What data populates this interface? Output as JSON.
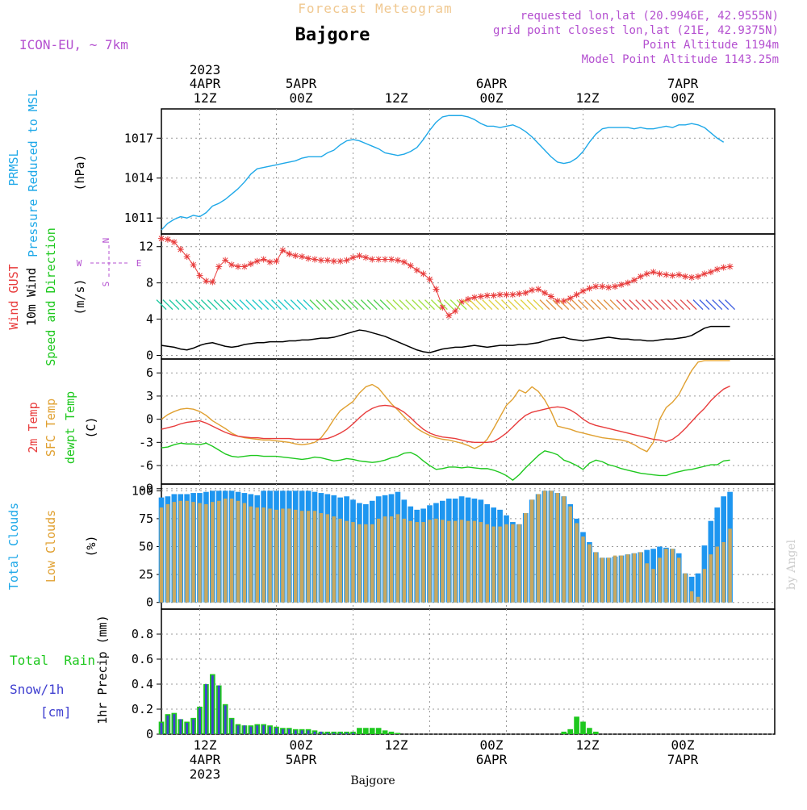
{
  "header": {
    "chart_title": "Forecast Meteogram",
    "location": "Bajgore",
    "model": "ICON-EU, ~ 7km",
    "info": [
      "requested lon,lat (20.9946E, 42.9555N)",
      "grid point closest lon,lat (21E, 42.9375N)",
      "Point Altitude 1194m",
      "Model Point Altitude 1143.25m"
    ],
    "watermark": "by Angel",
    "footer_location": "Bajgore"
  },
  "colors": {
    "pressure": "#1ea8e8",
    "gust": "#e83c3c",
    "wind": "#000000",
    "temp2m": "#e83c3c",
    "sfc": "#e0a030",
    "dewpt": "#1ec81e",
    "total_clouds": "#1e96f0",
    "low_clouds": "#c8a860",
    "rain": "#1ec81e",
    "snow": "#4040d0",
    "title": "#f0c890",
    "info": "#b450d0"
  },
  "time_axis": {
    "top_year": "2023",
    "top_dates": [
      "4APR",
      "5APR",
      "6APR",
      "7APR"
    ],
    "top_hours": [
      "12Z",
      "00Z",
      "12Z",
      "00Z",
      "12Z",
      "00Z"
    ],
    "bottom_hours": [
      "12Z",
      "00Z",
      "12Z",
      "00Z",
      "12Z",
      "00Z"
    ],
    "bottom_dates": [
      "4APR",
      "5APR",
      "6APR",
      "7APR"
    ],
    "bottom_year": "2023"
  },
  "panel_labels": {
    "pressure": {
      "line1": "PRMSL",
      "line2": "Pressure Reduced to MSL",
      "unit": "(hPa)"
    },
    "wind": {
      "gust": "Wind GUST",
      "wind10": "10m Wind",
      "dir": "Speed and Direction",
      "unit": "(m/s)"
    },
    "compass": {
      "n": "N",
      "s": "S",
      "w": "W",
      "e": "E"
    },
    "temp": {
      "t2m": "2m Temp",
      "sfc": "SFC Temp",
      "dew": "dewpt Temp",
      "unit": "(C)"
    },
    "clouds": {
      "total": "Total Clouds",
      "low": "Low Clouds",
      "unit": "(%)"
    },
    "precip": {
      "rain": "Total  Rain",
      "snow": "Snow/1h",
      "cm": "[cm]",
      "axis": "1hr Precip (mm)"
    }
  },
  "chart_data": [
    {
      "type": "line",
      "panel": "pressure",
      "ylabel": "(hPa)",
      "yticks": [
        1011,
        1014,
        1017
      ],
      "ylim": [
        1009.8,
        1019.2
      ],
      "x_hours_from": 6,
      "x_step": 1,
      "series": [
        {
          "name": "PRMSL",
          "values": [
            1010.1,
            1010.6,
            1010.9,
            1011.1,
            1011.0,
            1011.2,
            1011.1,
            1011.4,
            1011.9,
            1012.1,
            1012.4,
            1012.8,
            1013.2,
            1013.7,
            1014.3,
            1014.7,
            1014.8,
            1014.9,
            1015.0,
            1015.1,
            1015.2,
            1015.3,
            1015.5,
            1015.6,
            1015.6,
            1015.6,
            1015.9,
            1016.1,
            1016.5,
            1016.8,
            1016.9,
            1016.8,
            1016.6,
            1016.4,
            1016.2,
            1015.9,
            1015.8,
            1015.7,
            1015.8,
            1016.0,
            1016.3,
            1016.9,
            1017.6,
            1018.2,
            1018.6,
            1018.7,
            1018.7,
            1018.7,
            1018.6,
            1018.4,
            1018.1,
            1017.9,
            1017.9,
            1017.8,
            1017.9,
            1018.0,
            1017.8,
            1017.5,
            1017.1,
            1016.6,
            1016.1,
            1015.6,
            1015.2,
            1015.1,
            1015.2,
            1015.5,
            1016.0,
            1016.7,
            1017.3,
            1017.7,
            1017.8,
            1017.8,
            1017.8,
            1017.8,
            1017.7,
            1017.8,
            1017.7,
            1017.7,
            1017.8,
            1017.9,
            1017.8,
            1018.0,
            1018.0,
            1018.1,
            1018.0,
            1017.8,
            1017.4,
            1017.0,
            1016.7
          ]
        }
      ]
    },
    {
      "type": "line",
      "panel": "wind",
      "ylabel": "(m/s)",
      "yticks": [
        0,
        4,
        8,
        12
      ],
      "ylim": [
        -0.4,
        13.4
      ],
      "x_hours_from": 6,
      "x_step": 1,
      "series": [
        {
          "name": "Wind GUST",
          "values": [
            12.9,
            12.8,
            12.5,
            11.7,
            10.9,
            10.0,
            8.8,
            8.2,
            8.1,
            9.8,
            10.5,
            10.0,
            9.8,
            9.8,
            10.1,
            10.4,
            10.6,
            10.3,
            10.4,
            11.6,
            11.2,
            11.0,
            10.9,
            10.7,
            10.6,
            10.5,
            10.5,
            10.4,
            10.4,
            10.5,
            10.8,
            11.0,
            10.8,
            10.6,
            10.6,
            10.6,
            10.6,
            10.5,
            10.3,
            9.9,
            9.4,
            9.0,
            8.4,
            7.3,
            5.3,
            4.4,
            4.9,
            5.9,
            6.2,
            6.4,
            6.5,
            6.6,
            6.6,
            6.7,
            6.7,
            6.7,
            6.8,
            6.9,
            7.2,
            7.3,
            6.9,
            6.5,
            6.0,
            6.0,
            6.3,
            6.7,
            7.1,
            7.4,
            7.6,
            7.6,
            7.5,
            7.6,
            7.8,
            8.0,
            8.3,
            8.7,
            9.0,
            9.2,
            9.0,
            8.9,
            8.8,
            8.9,
            8.7,
            8.6,
            8.7,
            9.0,
            9.2,
            9.5,
            9.7,
            9.8
          ]
        },
        {
          "name": "10m Wind",
          "values": [
            1.1,
            1.0,
            0.9,
            0.7,
            0.6,
            0.8,
            1.1,
            1.3,
            1.4,
            1.2,
            1.0,
            0.9,
            1.0,
            1.2,
            1.3,
            1.4,
            1.4,
            1.5,
            1.5,
            1.5,
            1.6,
            1.6,
            1.7,
            1.7,
            1.8,
            1.9,
            1.9,
            2.0,
            2.2,
            2.4,
            2.6,
            2.8,
            2.7,
            2.5,
            2.3,
            2.1,
            1.8,
            1.5,
            1.2,
            0.9,
            0.6,
            0.4,
            0.3,
            0.5,
            0.7,
            0.8,
            0.9,
            0.9,
            1.0,
            1.1,
            1.0,
            0.9,
            1.0,
            1.1,
            1.1,
            1.1,
            1.2,
            1.2,
            1.3,
            1.4,
            1.6,
            1.8,
            1.9,
            2.0,
            1.8,
            1.7,
            1.6,
            1.7,
            1.8,
            1.9,
            2.0,
            1.9,
            1.8,
            1.8,
            1.7,
            1.7,
            1.6,
            1.6,
            1.7,
            1.8,
            1.8,
            1.9,
            2.0,
            2.2,
            2.6,
            3.0,
            3.2,
            3.2,
            3.2,
            3.2
          ]
        }
      ]
    },
    {
      "type": "line",
      "panel": "temperature",
      "ylabel": "(C)",
      "yticks": [
        -9,
        -6,
        -3,
        0,
        3,
        6
      ],
      "ylim": [
        -8.4,
        7.8
      ],
      "x_hours_from": 6,
      "x_step": 1,
      "series": [
        {
          "name": "2m Temp",
          "values": [
            -1.3,
            -1.1,
            -0.9,
            -0.6,
            -0.4,
            -0.3,
            -0.2,
            -0.5,
            -0.9,
            -1.3,
            -1.7,
            -2.0,
            -2.2,
            -2.3,
            -2.4,
            -2.4,
            -2.5,
            -2.5,
            -2.5,
            -2.5,
            -2.5,
            -2.6,
            -2.6,
            -2.6,
            -2.6,
            -2.6,
            -2.5,
            -2.2,
            -1.8,
            -1.3,
            -0.6,
            0.2,
            0.9,
            1.4,
            1.7,
            1.8,
            1.7,
            1.4,
            0.9,
            0.2,
            -0.6,
            -1.3,
            -1.8,
            -2.1,
            -2.3,
            -2.4,
            -2.5,
            -2.7,
            -2.9,
            -3.0,
            -3.0,
            -3.0,
            -2.9,
            -2.4,
            -1.8,
            -1.0,
            -0.2,
            0.5,
            0.9,
            1.1,
            1.3,
            1.5,
            1.6,
            1.5,
            1.2,
            0.7,
            0.0,
            -0.5,
            -0.8,
            -1.0,
            -1.2,
            -1.4,
            -1.6,
            -1.8,
            -2.0,
            -2.2,
            -2.4,
            -2.6,
            -2.7,
            -2.9,
            -2.6,
            -2.0,
            -1.2,
            -0.3,
            0.6,
            1.4,
            2.4,
            3.2,
            3.9,
            4.3
          ]
        },
        {
          "name": "SFC Temp",
          "values": [
            0.0,
            0.6,
            1.0,
            1.3,
            1.4,
            1.3,
            1.0,
            0.5,
            -0.2,
            -0.7,
            -1.2,
            -1.8,
            -2.2,
            -2.4,
            -2.5,
            -2.6,
            -2.7,
            -2.7,
            -2.8,
            -2.9,
            -3.0,
            -3.2,
            -3.3,
            -3.2,
            -3.0,
            -2.4,
            -1.3,
            0.0,
            1.1,
            1.7,
            2.3,
            3.4,
            4.2,
            4.5,
            4.0,
            3.0,
            2.0,
            1.2,
            0.3,
            -0.5,
            -1.2,
            -1.7,
            -2.1,
            -2.4,
            -2.6,
            -2.7,
            -2.9,
            -3.1,
            -3.4,
            -3.8,
            -3.4,
            -2.6,
            -1.2,
            0.3,
            1.8,
            2.6,
            3.8,
            3.4,
            4.2,
            3.6,
            2.5,
            1.0,
            -0.9,
            -1.1,
            -1.3,
            -1.6,
            -1.8,
            -2.0,
            -2.2,
            -2.4,
            -2.5,
            -2.6,
            -2.7,
            -2.9,
            -3.3,
            -3.8,
            -4.2,
            -3.0,
            0.0,
            1.5,
            2.2,
            3.2,
            4.8,
            6.3,
            7.4,
            7.6,
            7.6,
            7.6,
            7.6,
            7.6
          ]
        },
        {
          "name": "dewpt Temp",
          "values": [
            -3.7,
            -3.6,
            -3.3,
            -3.1,
            -3.2,
            -3.2,
            -3.3,
            -3.1,
            -3.5,
            -4.0,
            -4.5,
            -4.8,
            -4.9,
            -4.8,
            -4.7,
            -4.7,
            -4.8,
            -4.8,
            -4.8,
            -4.9,
            -5.0,
            -5.1,
            -5.2,
            -5.1,
            -4.9,
            -5.0,
            -5.2,
            -5.4,
            -5.3,
            -5.1,
            -5.2,
            -5.4,
            -5.5,
            -5.6,
            -5.5,
            -5.3,
            -5.0,
            -4.8,
            -4.4,
            -4.3,
            -4.7,
            -5.4,
            -6.0,
            -6.5,
            -6.4,
            -6.2,
            -6.2,
            -6.3,
            -6.2,
            -6.3,
            -6.4,
            -6.4,
            -6.6,
            -6.9,
            -7.3,
            -7.9,
            -7.2,
            -6.3,
            -5.5,
            -4.7,
            -4.1,
            -4.3,
            -4.6,
            -5.3,
            -5.6,
            -6.0,
            -6.5,
            -5.7,
            -5.3,
            -5.5,
            -5.9,
            -6.1,
            -6.4,
            -6.6,
            -6.8,
            -7.0,
            -7.1,
            -7.2,
            -7.3,
            -7.3,
            -7.0,
            -6.8,
            -6.6,
            -6.5,
            -6.3,
            -6.1,
            -5.9,
            -5.9,
            -5.4,
            -5.3
          ]
        }
      ]
    },
    {
      "type": "bar",
      "panel": "clouds",
      "ylabel": "(%)",
      "yticks": [
        0,
        25,
        50,
        75,
        100
      ],
      "ylim": [
        -6,
        106
      ],
      "x_hours_from": 6,
      "x_step": 1,
      "series": [
        {
          "name": "Total Clouds",
          "values": [
            94,
            95,
            97,
            97,
            97,
            98,
            98,
            99,
            100,
            100,
            100,
            100,
            99,
            98,
            97,
            96,
            100,
            100,
            100,
            100,
            100,
            100,
            100,
            100,
            99,
            98,
            97,
            96,
            94,
            95,
            92,
            89,
            88,
            91,
            95,
            96,
            97,
            99,
            92,
            86,
            83,
            84,
            87,
            89,
            91,
            93,
            93,
            95,
            94,
            93,
            92,
            88,
            85,
            83,
            78,
            72,
            70,
            80,
            92,
            97,
            100,
            100,
            98,
            95,
            88,
            75,
            63,
            54,
            45,
            40,
            40,
            41,
            42,
            43,
            44,
            45,
            47,
            48,
            50,
            49,
            48,
            44,
            26,
            23,
            26,
            51,
            73,
            85,
            95,
            99
          ]
        },
        {
          "name": "Low Clouds",
          "values": [
            85,
            88,
            90,
            91,
            91,
            90,
            89,
            88,
            90,
            91,
            93,
            93,
            91,
            89,
            86,
            85,
            85,
            84,
            83,
            84,
            84,
            83,
            82,
            82,
            82,
            80,
            79,
            77,
            75,
            73,
            72,
            70,
            70,
            70,
            75,
            77,
            77,
            79,
            75,
            73,
            72,
            72,
            74,
            75,
            74,
            73,
            73,
            74,
            73,
            73,
            72,
            70,
            68,
            68,
            70,
            70,
            70,
            80,
            92,
            97,
            100,
            100,
            98,
            95,
            86,
            71,
            59,
            52,
            45,
            40,
            40,
            42,
            42,
            43,
            44,
            45,
            35,
            30,
            40,
            48,
            48,
            40,
            26,
            10,
            5,
            30,
            43,
            50,
            54,
            66
          ]
        }
      ]
    },
    {
      "type": "bar",
      "panel": "precip",
      "ylabel": "1hr Precip (mm)",
      "yticks": [
        0,
        0.2,
        0.4,
        0.6,
        0.8
      ],
      "ylim": [
        0,
        1.0
      ],
      "x_hours_from": 6,
      "x_step": 1,
      "series": [
        {
          "name": "Total Rain",
          "values": [
            0.1,
            0.16,
            0.17,
            0.12,
            0.1,
            0.13,
            0.22,
            0.4,
            0.48,
            0.39,
            0.24,
            0.13,
            0.08,
            0.07,
            0.07,
            0.08,
            0.08,
            0.07,
            0.06,
            0.05,
            0.05,
            0.04,
            0.04,
            0.04,
            0.03,
            0.02,
            0.02,
            0.02,
            0.02,
            0.02,
            0.02,
            0.05,
            0.05,
            0.05,
            0.05,
            0.03,
            0.02,
            0.01,
            0.0,
            0.0,
            0.0,
            0.0,
            0.0,
            0.0,
            0.0,
            0.0,
            0.0,
            0.0,
            0.0,
            0.0,
            0.0,
            0.0,
            0.0,
            0.0,
            0.0,
            0.0,
            0.0,
            0.0,
            0.0,
            0.0,
            0.0,
            0.0,
            0.0,
            0.02,
            0.04,
            0.14,
            0.1,
            0.05,
            0.02,
            0.0,
            0.0,
            0.0,
            0.0,
            0.0,
            0.0,
            0.0,
            0.0,
            0.0,
            0.0,
            0.0,
            0.0,
            0.0,
            0.0,
            0.0,
            0.0,
            0.0,
            0.0,
            0.0,
            0.0,
            0.0
          ]
        },
        {
          "name": "Snow/1h",
          "values": [
            0.09,
            0.15,
            0.16,
            0.12,
            0.09,
            0.12,
            0.21,
            0.4,
            0.47,
            0.39,
            0.23,
            0.12,
            0.07,
            0.07,
            0.06,
            0.07,
            0.07,
            0.06,
            0.05,
            0.04,
            0.04,
            0.03,
            0.03,
            0.03,
            0.02,
            0.02,
            0.01,
            0.01,
            0.01,
            0.01,
            0.01,
            0.0,
            0.0,
            0.0,
            0.0,
            0.0,
            0.0,
            0.0,
            0.0,
            0.0,
            0.0,
            0.0,
            0.0,
            0.0,
            0.0,
            0.0,
            0.0,
            0.0,
            0.0,
            0.0,
            0.0,
            0.0,
            0.0,
            0.0,
            0.0,
            0.0,
            0.0,
            0.0,
            0.0,
            0.0,
            0.0,
            0.0,
            0.0,
            0.0,
            0.0,
            0.0,
            0.0,
            0.0,
            0.0,
            0.0,
            0.0,
            0.0,
            0.0,
            0.0,
            0.0,
            0.0,
            0.0,
            0.0,
            0.0,
            0.0,
            0.0,
            0.0,
            0.0,
            0.0,
            0.0,
            0.0,
            0.0,
            0.0,
            0.0,
            0.0
          ]
        }
      ]
    }
  ]
}
